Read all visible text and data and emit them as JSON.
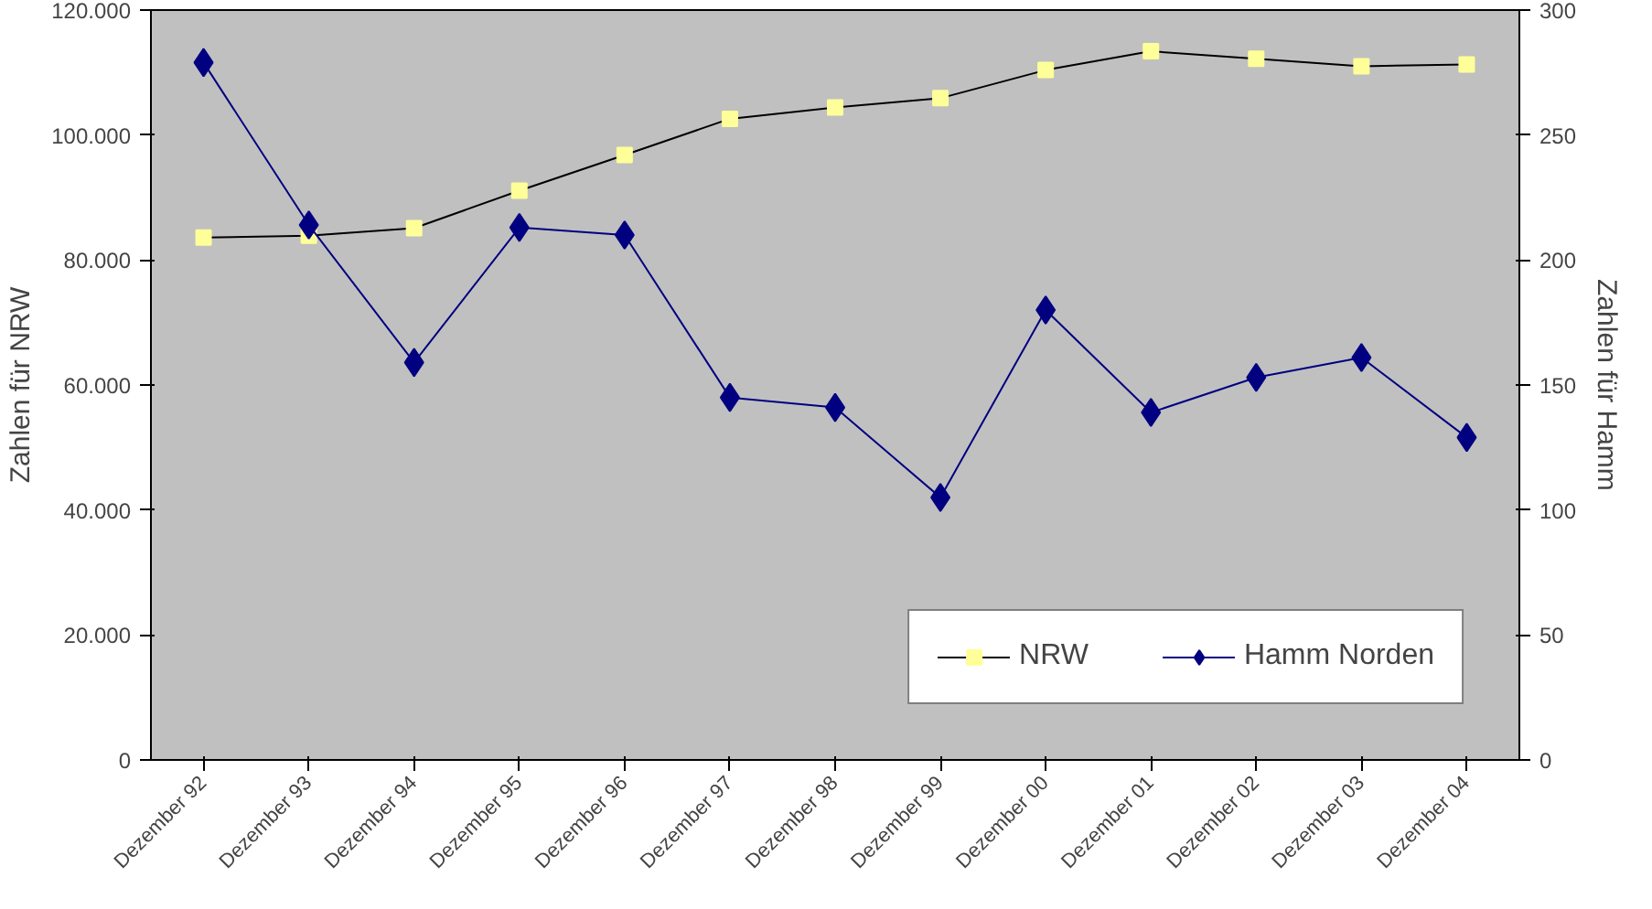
{
  "chart_data": {
    "type": "line",
    "categories": [
      "Dezember 92",
      "Dezember 93",
      "Dezember 94",
      "Dezember 95",
      "Dezember 96",
      "Dezember 97",
      "Dezember 98",
      "Dezember 99",
      "Dezember 00",
      "Dezember 01",
      "Dezember 02",
      "Dezember 03",
      "Dezember 04"
    ],
    "ylabel": "Zahlen für NRW",
    "y2label": "Zahlen für Hamm",
    "ylim": [
      0,
      120000
    ],
    "yticks": [
      {
        "value": 0,
        "label": "0"
      },
      {
        "value": 20000,
        "label": "20.000"
      },
      {
        "value": 40000,
        "label": "40.000"
      },
      {
        "value": 60000,
        "label": "60.000"
      },
      {
        "value": 80000,
        "label": "80.000"
      },
      {
        "value": 100000,
        "label": "100.000"
      },
      {
        "value": 120000,
        "label": "120.000"
      }
    ],
    "y2lim": [
      0,
      300
    ],
    "y2ticks": [
      0,
      50,
      100,
      150,
      200,
      250,
      300
    ],
    "series": [
      {
        "name": "NRW",
        "color": "#ffff99",
        "marker": "square",
        "values": [
          83600,
          83900,
          85100,
          91100,
          96800,
          102600,
          104400,
          105900,
          110400,
          113400,
          112200,
          111000,
          111300
        ]
      },
      {
        "name": "Hamm Norden",
        "color": "#000080",
        "marker": "diamond",
        "axis": "y2",
        "values": [
          279,
          214,
          159,
          213,
          210,
          145,
          141,
          105,
          180,
          139,
          153,
          161,
          129
        ]
      }
    ],
    "legend": "bottom right",
    "grid": false,
    "line_style": "solid"
  }
}
